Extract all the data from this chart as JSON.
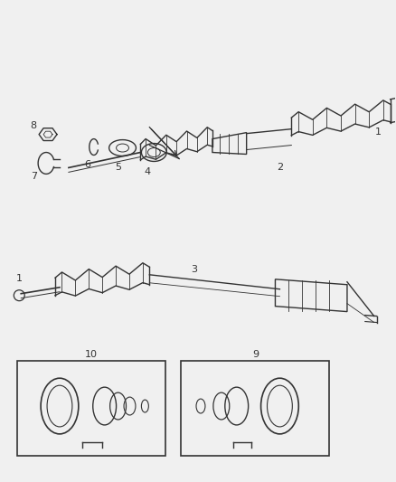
{
  "bg_color": "#f0f0f0",
  "line_color": "#333333",
  "fig_width": 4.38,
  "fig_height": 5.33,
  "dpi": 100
}
